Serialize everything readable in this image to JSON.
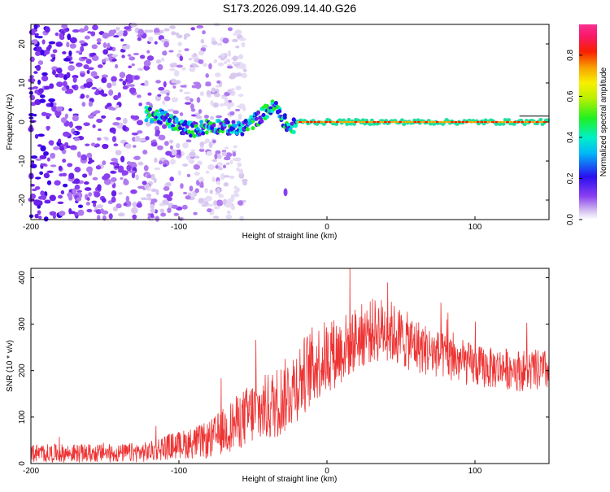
{
  "chart_data": [
    {
      "type": "heatmap",
      "title": "S173.2026.099.14.40.G26",
      "xlabel": "Height of straight line (km)",
      "ylabel": "Frequency (Hz)",
      "xlim": [
        -200,
        150
      ],
      "ylim": [
        -25,
        25
      ],
      "xticks": [
        -200,
        -100,
        0,
        100
      ],
      "yticks": [
        -20,
        -10,
        0,
        10,
        20
      ],
      "xtick_labels": [
        "-200",
        "-100",
        "0",
        "100"
      ],
      "ytick_labels": [
        "-20",
        "-10",
        "0",
        "10",
        "20"
      ],
      "colorbar": {
        "label": "Normalized spectral amplitude",
        "range": [
          0,
          0.95
        ],
        "ticks": [
          0.0,
          0.2,
          0.4,
          0.6,
          0.8
        ],
        "tick_labels": [
          "0.0",
          "0.2",
          "0.4",
          "0.6",
          "0.8"
        ]
      },
      "trace": {
        "x": [
          -120,
          -110,
          -100,
          -90,
          -80,
          -70,
          -60,
          -50,
          -40,
          -35,
          -30,
          -25,
          -20,
          0,
          50,
          100,
          150
        ],
        "y": [
          2,
          1,
          -1,
          -2,
          -1,
          -1,
          -2,
          0,
          3,
          4,
          1,
          -2,
          0,
          0,
          0,
          0,
          0
        ]
      },
      "scatter_region": {
        "x_from": -200,
        "x_to": -80
      },
      "isolated_blob": {
        "x": -28,
        "y": -18
      }
    },
    {
      "type": "line",
      "xlabel": "Height of straight line (km)",
      "ylabel": "SNR (10 * v/v)",
      "xlim": [
        -200,
        150
      ],
      "ylim": [
        0,
        420
      ],
      "xticks": [
        -200,
        -100,
        0,
        100
      ],
      "yticks": [
        0,
        100,
        200,
        300,
        400
      ],
      "xtick_labels": [
        "-200",
        "-100",
        "0",
        "100"
      ],
      "ytick_labels": [
        "0",
        "100",
        "200",
        "300",
        "400"
      ],
      "series": [
        {
          "name": "SNR",
          "color": "#ee3333",
          "x": [
            -200,
            -180,
            -160,
            -140,
            -120,
            -110,
            -100,
            -90,
            -80,
            -70,
            -60,
            -50,
            -40,
            -30,
            -20,
            -10,
            0,
            10,
            20,
            30,
            40,
            50,
            60,
            70,
            80,
            90,
            100,
            110,
            120,
            130,
            140,
            150
          ],
          "y": [
            22,
            22,
            22,
            22,
            25,
            35,
            40,
            45,
            50,
            70,
            90,
            110,
            120,
            140,
            175,
            210,
            230,
            245,
            270,
            285,
            290,
            270,
            255,
            240,
            230,
            220,
            210,
            205,
            205,
            200,
            200,
            200
          ],
          "spread": [
            20,
            20,
            20,
            20,
            22,
            28,
            30,
            35,
            40,
            50,
            60,
            70,
            75,
            80,
            85,
            85,
            80,
            75,
            70,
            70,
            70,
            65,
            60,
            55,
            50,
            50,
            45,
            45,
            45,
            45,
            45,
            45
          ]
        }
      ]
    }
  ],
  "colors": {
    "line": "#ee3333",
    "frame": "#000000"
  }
}
